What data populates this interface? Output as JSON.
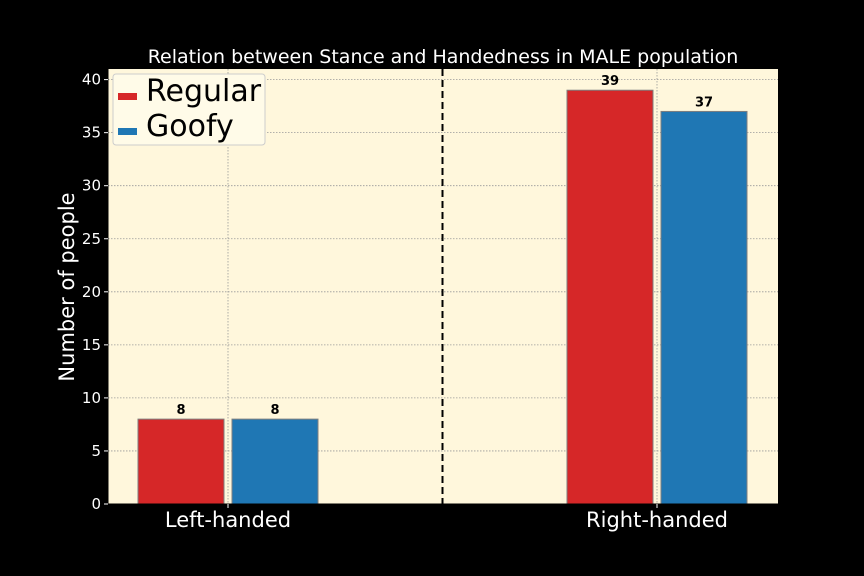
{
  "chart_data": {
    "type": "bar",
    "title": "Relation between Stance and Handedness in MALE population",
    "xlabel": "",
    "ylabel": "Number of people",
    "categories": [
      "Left-handed",
      "Right-handed"
    ],
    "series": [
      {
        "name": "Regular",
        "values": [
          8,
          39
        ],
        "color": "#d62728"
      },
      {
        "name": "Goofy",
        "values": [
          8,
          37
        ],
        "color": "#1f77b4"
      }
    ],
    "ylim": [
      0,
      41
    ],
    "yticks": [
      0,
      5,
      10,
      15,
      20,
      25,
      30,
      35,
      40
    ],
    "grid": true,
    "legend": "top-left",
    "divider": "dashed vertical line between categories",
    "colors": {
      "background": "#000000",
      "plot_background": "#fff7dc",
      "text": "#ffffff",
      "grid": "#999999"
    }
  }
}
